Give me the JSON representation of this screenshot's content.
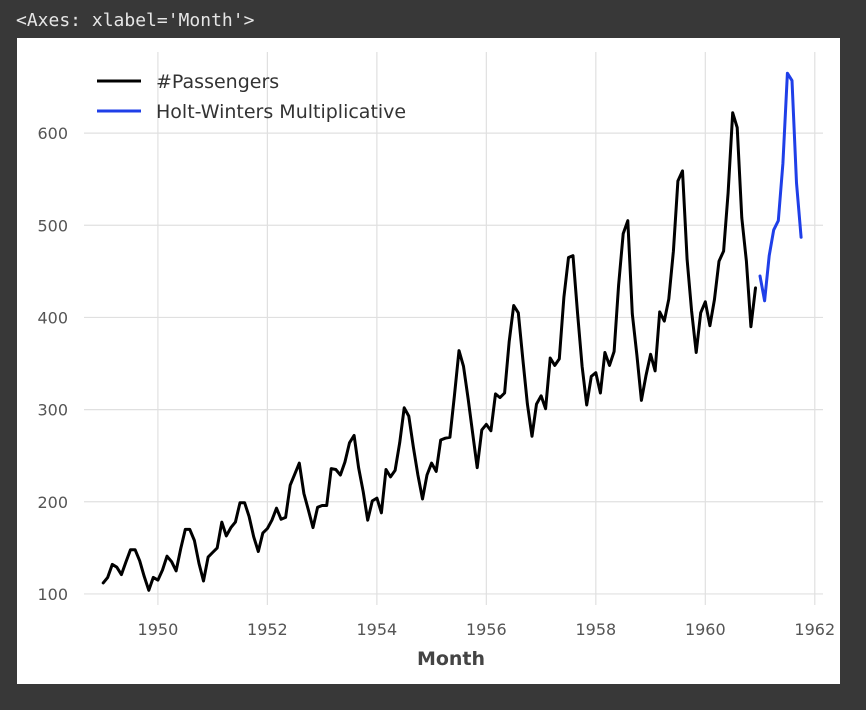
{
  "output": {
    "repr_text": "<Axes: xlabel='Month'>"
  },
  "chart_data": {
    "type": "line",
    "xlabel": "Month",
    "ylabel": "",
    "xlim": [
      1948.65,
      1962.15
    ],
    "ylim": [
      88,
      688
    ],
    "xticks": [
      1950,
      1952,
      1954,
      1956,
      1958,
      1960,
      1962
    ],
    "yticks": [
      100,
      200,
      300,
      400,
      500,
      600
    ],
    "grid": true,
    "legend_position": "top-left",
    "series": [
      {
        "name": "#Passengers",
        "color": "#000000",
        "start_year": 1949,
        "step_months": 1,
        "values": [
          112,
          118,
          132,
          129,
          121,
          135,
          148,
          148,
          136,
          119,
          104,
          118,
          115,
          126,
          141,
          135,
          125,
          149,
          170,
          170,
          158,
          133,
          114,
          140,
          145,
          150,
          178,
          163,
          172,
          178,
          199,
          199,
          184,
          162,
          146,
          166,
          171,
          180,
          193,
          181,
          183,
          218,
          230,
          242,
          209,
          191,
          172,
          194,
          196,
          196,
          236,
          235,
          229,
          243,
          264,
          272,
          237,
          211,
          180,
          201,
          204,
          188,
          235,
          227,
          234,
          264,
          302,
          293,
          259,
          229,
          203,
          229,
          242,
          233,
          267,
          269,
          270,
          315,
          364,
          347,
          312,
          274,
          237,
          278,
          284,
          277,
          317,
          313,
          318,
          374,
          413,
          405,
          355,
          306,
          271,
          306,
          315,
          301,
          356,
          348,
          355,
          422,
          465,
          467,
          404,
          347,
          305,
          336,
          340,
          318,
          362,
          348,
          363,
          435,
          491,
          505,
          404,
          359,
          310,
          337,
          360,
          342,
          406,
          396,
          420,
          472,
          548,
          559,
          463,
          407,
          362,
          405,
          417,
          391,
          419,
          461,
          472,
          535,
          622,
          606,
          508,
          461,
          390,
          432
        ]
      },
      {
        "name": "Holt-Winters Multiplicative",
        "color": "#1f3fe8",
        "start_year": 1961,
        "step_months": 1,
        "values": [
          445,
          418,
          467,
          495,
          505,
          567,
          665,
          657,
          546,
          487
        ]
      }
    ]
  }
}
